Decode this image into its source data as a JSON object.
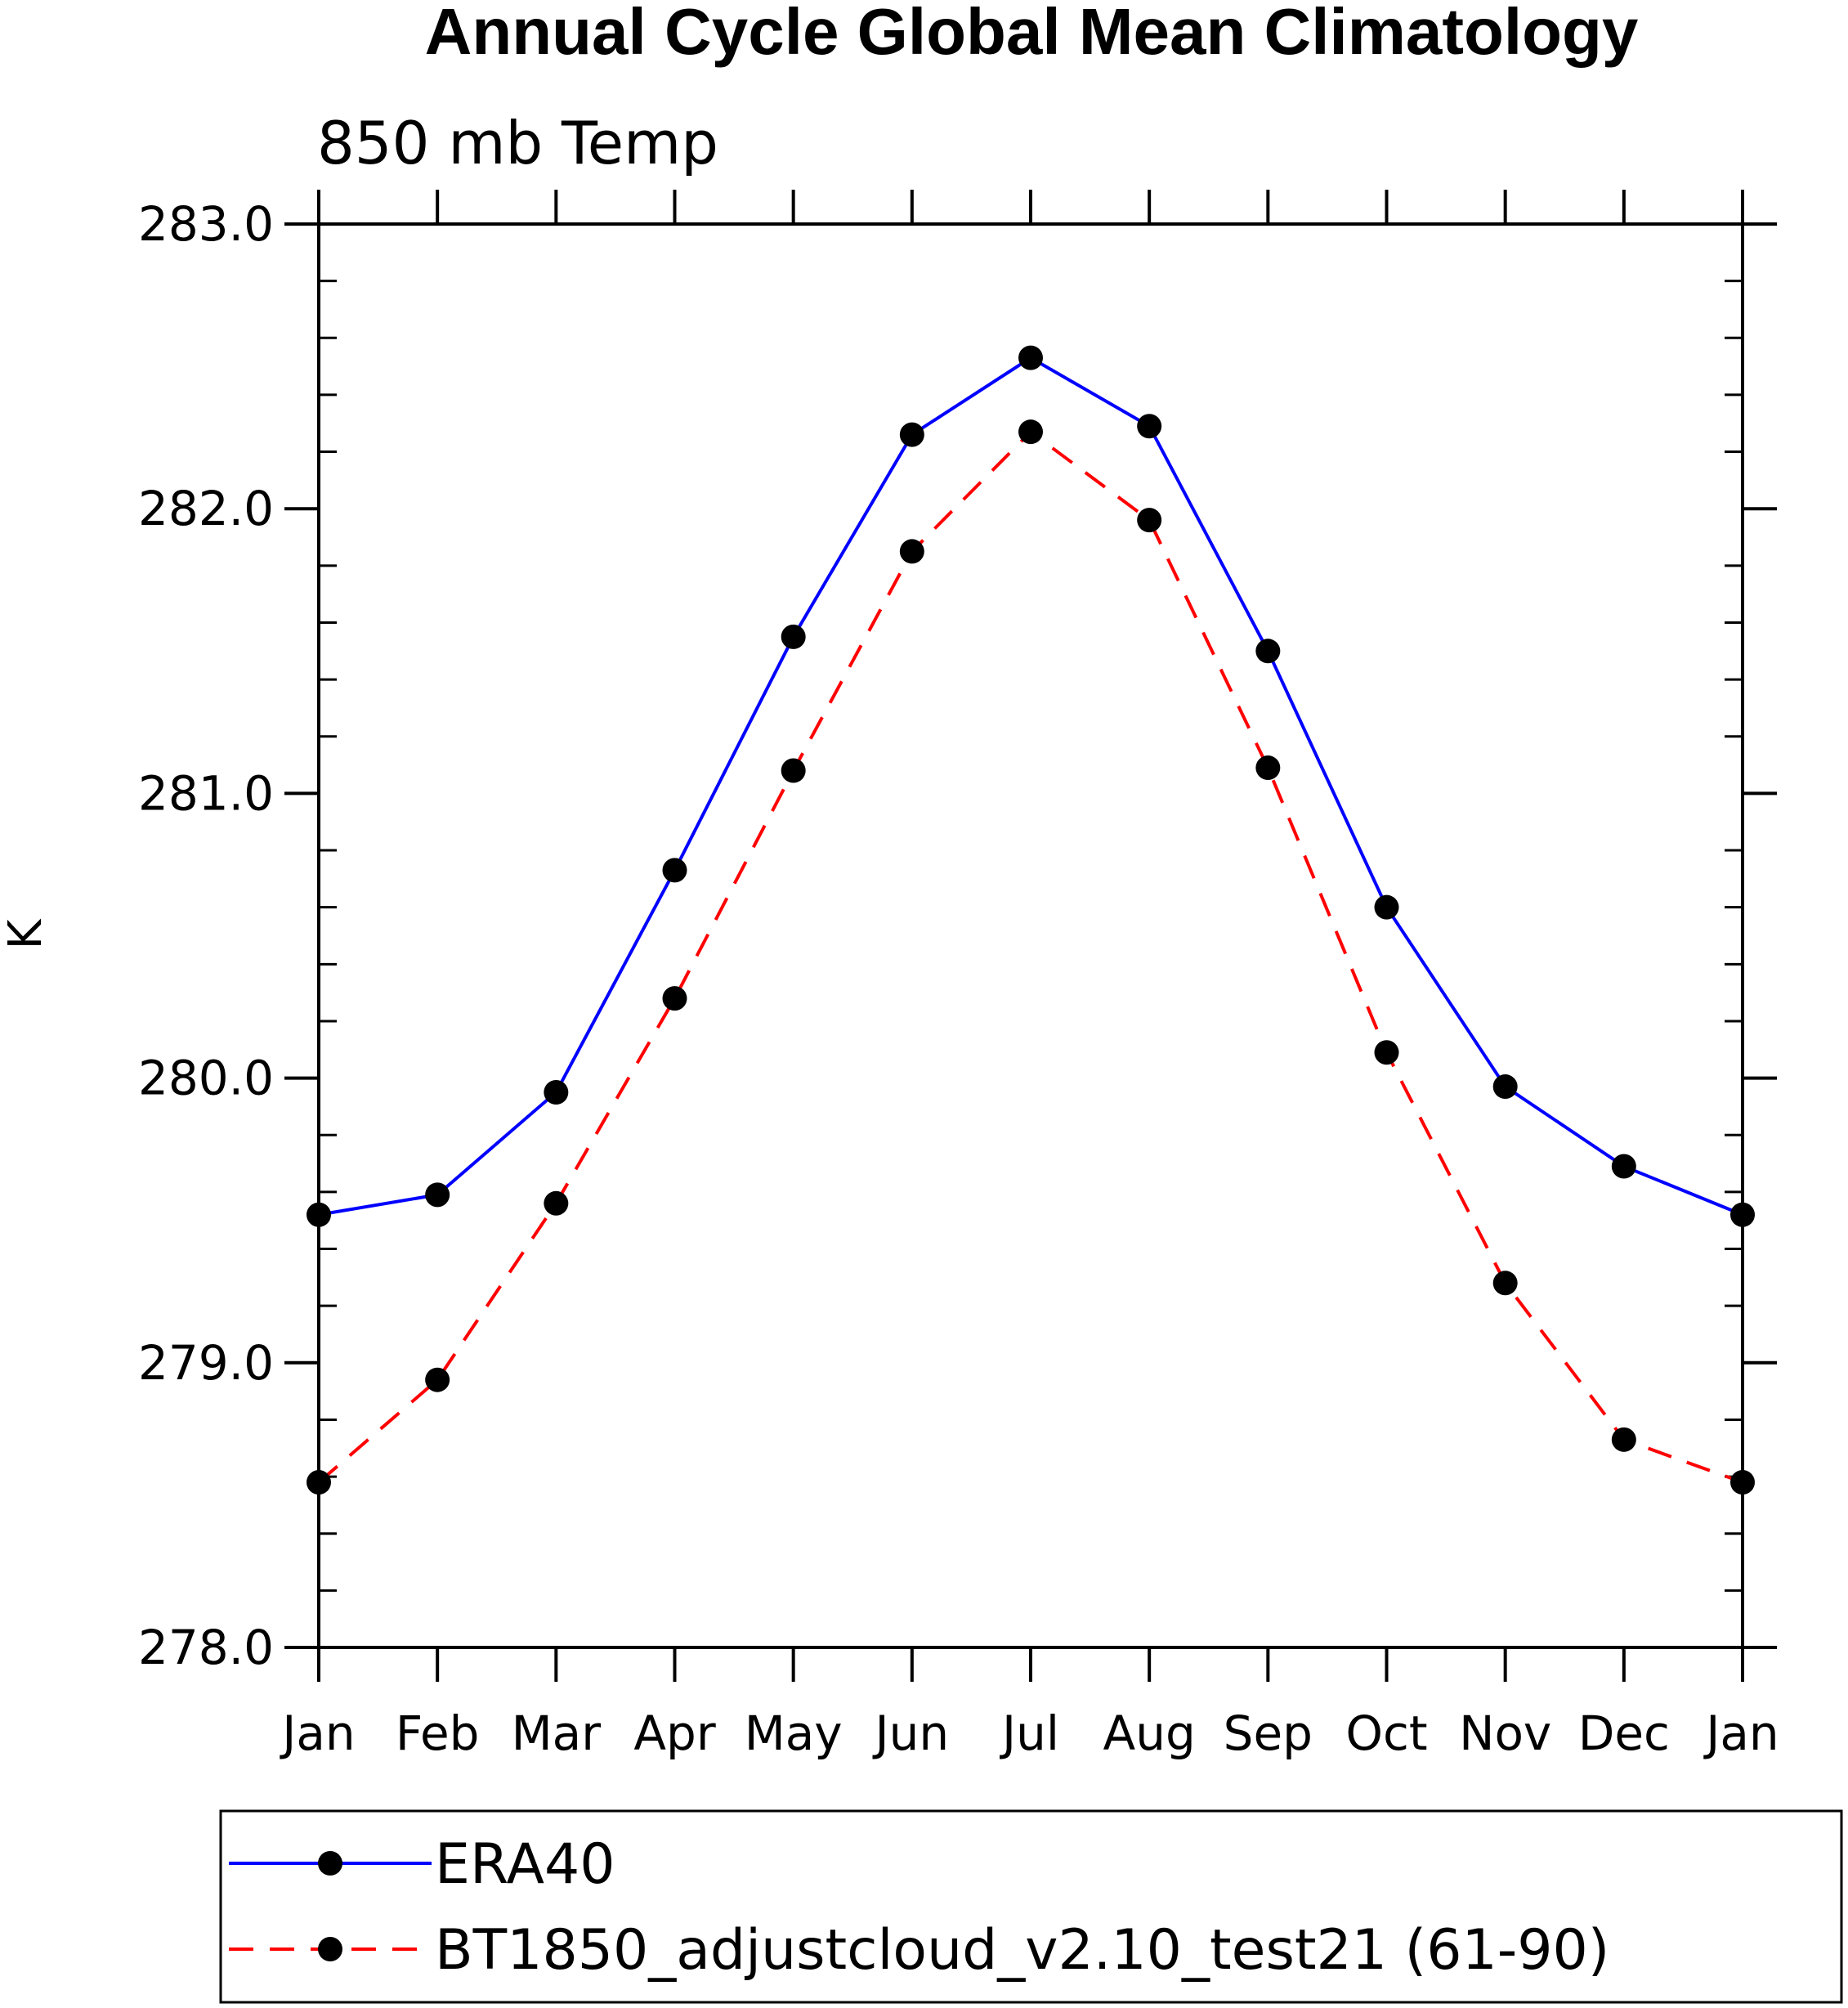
{
  "chart_data": {
    "type": "line",
    "title": "Annual Cycle Global Mean Climatology",
    "subtitle": "850 mb Temp",
    "xlabel": "",
    "ylabel": "K",
    "categories": [
      "Jan",
      "Feb",
      "Mar",
      "Apr",
      "May",
      "Jun",
      "Jul",
      "Aug",
      "Sep",
      "Oct",
      "Nov",
      "Dec",
      "Jan"
    ],
    "ylim": [
      278.0,
      283.0
    ],
    "yticks": [
      "278.0",
      "279.0",
      "280.0",
      "281.0",
      "282.0",
      "283.0"
    ],
    "grid": false,
    "legend_position": "bottom",
    "series": [
      {
        "name": "ERA40",
        "color": "#0000ff",
        "line_style": "solid",
        "marker": "filled-circle",
        "values": [
          279.52,
          279.59,
          279.95,
          280.73,
          281.55,
          282.26,
          282.53,
          282.29,
          281.5,
          280.6,
          279.97,
          279.69,
          279.52
        ]
      },
      {
        "name": "BT1850_adjustcloud_v2.10_test21 (61-90)",
        "color": "#ff0000",
        "line_style": "dashed",
        "marker": "filled-circle",
        "values": [
          278.58,
          278.94,
          279.56,
          280.28,
          281.08,
          281.85,
          282.27,
          281.96,
          281.09,
          280.09,
          279.28,
          278.73,
          278.58
        ]
      }
    ]
  }
}
